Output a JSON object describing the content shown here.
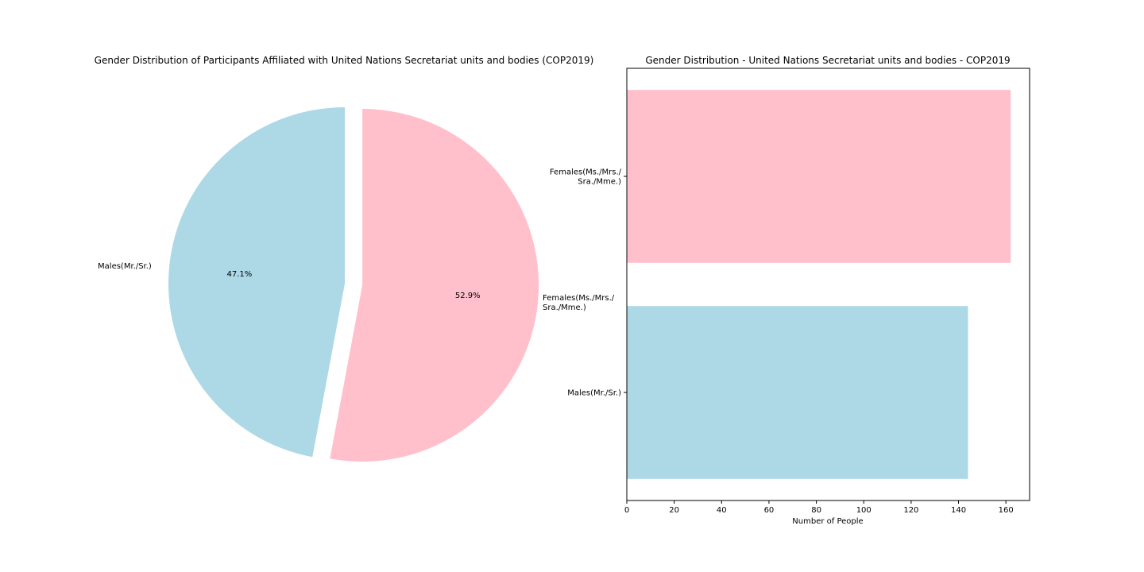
{
  "chart_data": [
    {
      "type": "pie",
      "title": "Gender Distribution of Participants Affiliated with United Nations Secretariat units and bodies (COP2019)",
      "labels": [
        "Males(Mr./Sr.)",
        "Females(Ms./Mrs./\nSra./Mme.)"
      ],
      "values": [
        144,
        162
      ],
      "percent_labels": [
        "47.1%",
        "52.9%"
      ],
      "colors": [
        "#add8e6",
        "#ffc0cb"
      ],
      "start_angle_deg": 90,
      "counterclockwise": true,
      "exploded_slice": 1,
      "extra_text": "Females(Ms./Mrs./\nSra./Mme.)"
    },
    {
      "type": "bar",
      "orientation": "horizontal",
      "title": "Gender Distribution - United Nations Secretariat units and bodies - COP2019",
      "categories": [
        "Males(Mr./Sr.)",
        "Females(Ms./Mrs./\nSra./Mme.)"
      ],
      "values": [
        144,
        162
      ],
      "colors": [
        "#add8e6",
        "#ffc0cb"
      ],
      "xlabel": "Number of People",
      "ylabel": "",
      "xlim": [
        0,
        170
      ],
      "xticks": [
        0,
        20,
        40,
        60,
        80,
        100,
        120,
        140,
        160
      ],
      "grid": false
    }
  ]
}
